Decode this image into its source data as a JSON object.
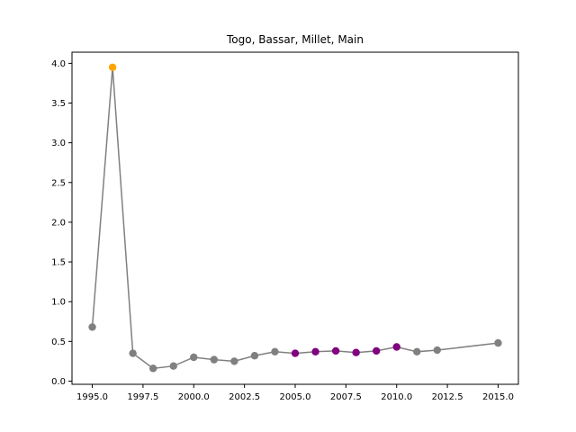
{
  "chart_data": {
    "type": "line",
    "title": "Togo, Bassar, Millet, Main",
    "xlabel": "",
    "ylabel": "",
    "xlim": [
      1994.0,
      2016.0
    ],
    "ylim": [
      -0.04,
      4.14
    ],
    "xticks": [
      1995.0,
      1997.5,
      2000.0,
      2002.5,
      2005.0,
      2007.5,
      2010.0,
      2012.5,
      2015.0
    ],
    "xtick_labels": [
      "1995.0",
      "1997.5",
      "2000.0",
      "2002.5",
      "2005.0",
      "2007.5",
      "2010.0",
      "2012.5",
      "2015.0"
    ],
    "yticks": [
      0.0,
      0.5,
      1.0,
      1.5,
      2.0,
      2.5,
      3.0,
      3.5,
      4.0
    ],
    "ytick_labels": [
      "0.0",
      "0.5",
      "1.0",
      "1.5",
      "2.0",
      "2.5",
      "3.0",
      "3.5",
      "4.0"
    ],
    "grid": false,
    "line_color": "#808080",
    "series": [
      {
        "x": [
          1995,
          1996,
          1997,
          1998,
          1999,
          2000,
          2001,
          2002,
          2003,
          2004,
          2005,
          2006,
          2007,
          2008,
          2009,
          2010,
          2011,
          2012,
          2015
        ],
        "values": [
          0.68,
          3.95,
          0.35,
          0.16,
          0.19,
          0.3,
          0.27,
          0.25,
          0.32,
          0.37,
          0.35,
          0.37,
          0.38,
          0.36,
          0.38,
          0.43,
          0.37,
          0.39,
          0.48
        ],
        "point_colors": [
          "#808080",
          "#ffa500",
          "#808080",
          "#808080",
          "#808080",
          "#808080",
          "#808080",
          "#808080",
          "#808080",
          "#808080",
          "#800080",
          "#800080",
          "#800080",
          "#800080",
          "#800080",
          "#800080",
          "#808080",
          "#808080",
          "#808080"
        ]
      }
    ]
  }
}
